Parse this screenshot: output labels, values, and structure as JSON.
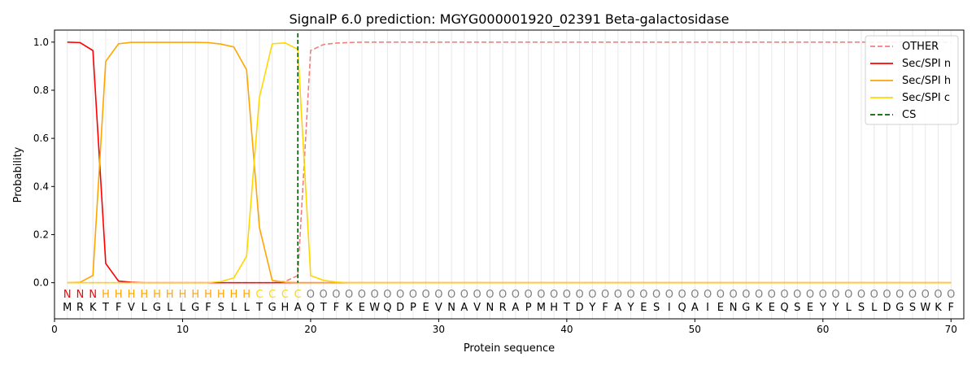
{
  "chart_data": {
    "type": "line",
    "title": "SignalP 6.0 prediction: MGYG000001920_02391 Beta-galactosidase",
    "xlabel": "Protein sequence",
    "ylabel": "Probability",
    "xlim": [
      0,
      71
    ],
    "ylim": [
      -0.15,
      1.05
    ],
    "xticks": [
      0,
      10,
      20,
      30,
      40,
      50,
      60,
      70
    ],
    "yticks": [
      0.0,
      0.2,
      0.4,
      0.6,
      0.8,
      1.0
    ],
    "legend_position": "top-right",
    "sequence": "MRKTFVLGLLGFSLLTGHAQTFKEWQDPEVNAVNRAPMHTDYFAYESIQAIENGKEQSEYYLSLDGSWKF",
    "labels": "NNNHHHHHHHHHHHHCCCCOOOOOOOOOOOOOOOOOOOOOOOOOOOOOOOOOOOOOOOOOOOOOOOOOOO",
    "label_colors": {
      "N": "#ff0000",
      "H": "#ffa500",
      "C": "#ffd700",
      "O": "#808080"
    },
    "cs_position": 19,
    "series": [
      {
        "name": "OTHER",
        "color": "#f08080",
        "dash": true,
        "values": [
          0,
          0,
          0,
          0,
          0,
          0,
          0,
          0,
          0,
          0,
          0,
          0,
          0,
          0,
          0,
          0,
          0,
          0.005,
          0.03,
          0.965,
          0.99,
          0.996,
          0.998,
          1,
          1,
          1,
          1,
          1,
          1,
          1,
          1,
          1,
          1,
          1,
          1,
          1,
          1,
          1,
          1,
          1,
          1,
          1,
          1,
          1,
          1,
          1,
          1,
          1,
          1,
          1,
          1,
          1,
          1,
          1,
          1,
          1,
          1,
          1,
          1,
          1,
          1,
          1,
          1,
          1,
          1,
          1,
          1,
          1,
          1,
          1
        ]
      },
      {
        "name": "Sec/SPI n",
        "color": "#ff0000",
        "values": [
          1.0,
          0.998,
          0.965,
          0.08,
          0.007,
          0.002,
          0,
          0,
          0,
          0,
          0,
          0,
          0,
          0,
          0,
          0,
          0,
          0,
          0,
          0,
          0,
          0,
          0,
          0,
          0,
          0,
          0,
          0,
          0,
          0,
          0,
          0,
          0,
          0,
          0,
          0,
          0,
          0,
          0,
          0,
          0,
          0,
          0,
          0,
          0,
          0,
          0,
          0,
          0,
          0,
          0,
          0,
          0,
          0,
          0,
          0,
          0,
          0,
          0,
          0,
          0,
          0,
          0,
          0,
          0,
          0,
          0,
          0,
          0,
          0
        ]
      },
      {
        "name": "Sec/SPI h",
        "color": "#ffa500",
        "values": [
          0,
          0.002,
          0.03,
          0.92,
          0.993,
          0.999,
          0.999,
          0.999,
          0.999,
          0.999,
          0.999,
          0.998,
          0.992,
          0.98,
          0.885,
          0.23,
          0.01,
          0.002,
          0,
          0,
          0,
          0,
          0,
          0,
          0,
          0,
          0,
          0,
          0,
          0,
          0,
          0,
          0,
          0,
          0,
          0,
          0,
          0,
          0,
          0,
          0,
          0,
          0,
          0,
          0,
          0,
          0,
          0,
          0,
          0,
          0,
          0,
          0,
          0,
          0,
          0,
          0,
          0,
          0,
          0,
          0,
          0,
          0,
          0,
          0,
          0,
          0,
          0,
          0,
          0
        ]
      },
      {
        "name": "Sec/SPI c",
        "color": "#ffd700",
        "values": [
          0,
          0,
          0,
          0,
          0,
          0,
          0,
          0,
          0,
          0,
          0,
          0,
          0.005,
          0.02,
          0.11,
          0.77,
          0.993,
          0.997,
          0.97,
          0.03,
          0.01,
          0.003,
          0,
          0,
          0,
          0,
          0,
          0,
          0,
          0,
          0,
          0,
          0,
          0,
          0,
          0,
          0,
          0,
          0,
          0,
          0,
          0,
          0,
          0,
          0,
          0,
          0,
          0,
          0,
          0,
          0,
          0,
          0,
          0,
          0,
          0,
          0,
          0,
          0,
          0,
          0,
          0,
          0,
          0,
          0,
          0,
          0,
          0,
          0,
          0
        ]
      },
      {
        "name": "CS",
        "color": "#006400",
        "dash": true
      }
    ]
  }
}
